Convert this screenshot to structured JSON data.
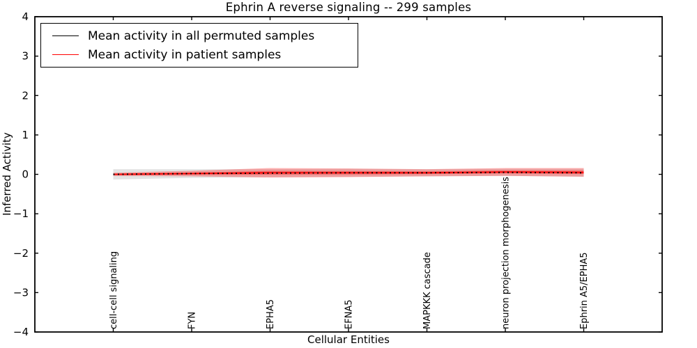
{
  "figure": {
    "title": "Ephrin A  reverse signaling -- 299 samples",
    "xlabel": "Cellular Entities",
    "ylabel": "Inferred Activity"
  },
  "legend": {
    "entries": [
      {
        "label": "Mean activity in all permuted samples",
        "color": "#000000"
      },
      {
        "label": "Mean activity in patient samples",
        "color": "#ff0000"
      }
    ]
  },
  "colors": {
    "frame": "#000000",
    "permuted_line": "#000000",
    "patient_line": "#ff0000",
    "permuted_band": "#999999",
    "patient_band": "#ff0000",
    "background": "#ffffff"
  },
  "chart_data": {
    "type": "line",
    "title": "Ephrin A  reverse signaling -- 299 samples",
    "xlabel": "Cellular Entities",
    "ylabel": "Inferred Activity",
    "xlim": [
      0,
      8
    ],
    "ylim": [
      -4,
      4
    ],
    "grid": false,
    "legend_position": "upper left",
    "yticks": [
      4,
      3,
      2,
      1,
      0,
      -1,
      -2,
      -3,
      -4
    ],
    "ytick_labels": [
      "4",
      "3",
      "2",
      "1",
      "0",
      "−1",
      "−2",
      "−3",
      "−4"
    ],
    "x": [
      1,
      2,
      3,
      4,
      5,
      6,
      7
    ],
    "categories": [
      "cell-cell signaling",
      "FYN",
      "EPHA5",
      "EFNA5",
      "MAPKKK cascade",
      "neuron projection morphogenesis",
      "Ephrin A5/EPHA5"
    ],
    "series": [
      {
        "name": "Mean activity in all permuted samples",
        "color": "#000000",
        "style": "dotted",
        "values": [
          0.0,
          0.02,
          0.03,
          0.04,
          0.04,
          0.05,
          0.04
        ],
        "band": [
          0.13,
          0.11,
          0.1,
          0.1,
          0.09,
          0.09,
          0.1
        ]
      },
      {
        "name": "Mean activity in patient samples",
        "color": "#ff0000",
        "style": "solid",
        "values": [
          0.0,
          0.02,
          0.04,
          0.04,
          0.04,
          0.06,
          0.05
        ],
        "band": [
          0.04,
          0.07,
          0.12,
          0.11,
          0.09,
          0.1,
          0.11
        ]
      }
    ]
  }
}
